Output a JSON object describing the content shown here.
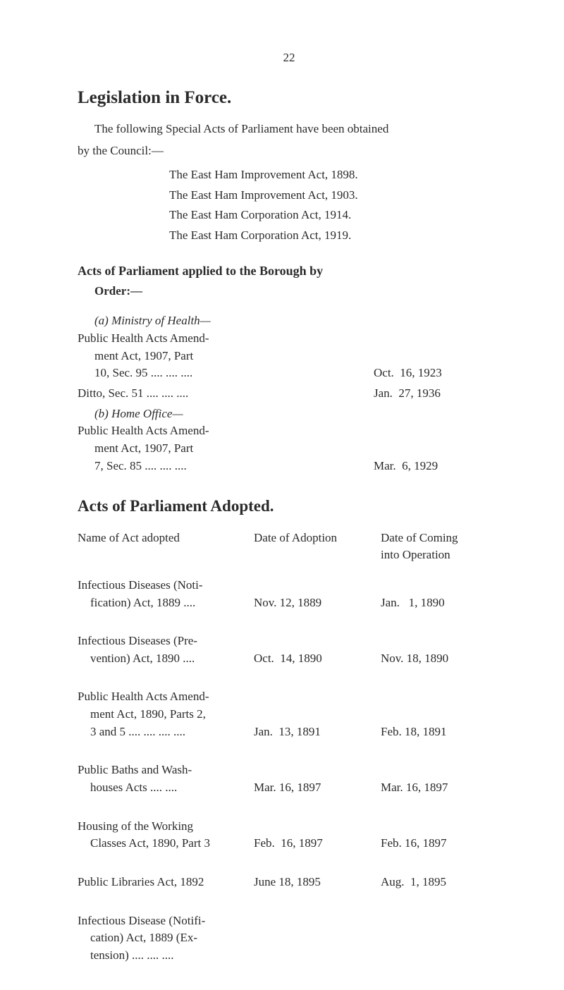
{
  "page_number": "22",
  "title": "Legislation in Force.",
  "intro_line1": "The following Special Acts of Parliament have been obtained",
  "intro_line2": "by the Council:—",
  "east_ham_acts": [
    "The East Ham Improvement Act, 1898.",
    "The East Ham Improvement Act, 1903.",
    "The East Ham Corporation Act, 1914.",
    "The East Ham Corporation Act, 1919."
  ],
  "applied_heading": "Acts of Parliament applied to the Borough by",
  "order_label": "Order:—",
  "applied": {
    "a_label": "(a) Ministry of Health—",
    "a1_lines": [
      "Public Health Acts Amend-",
      "ment Act, 1907, Part",
      "10, Sec. 95  ....  ....  ...."
    ],
    "a1_date": "Oct.  16, 1923",
    "a2_line": "Ditto, Sec. 51 ....  ....  ....",
    "a2_date": "Jan.  27, 1936",
    "b_label": "(b) Home Office—",
    "b1_lines": [
      "Public Health Acts Amend-",
      "ment Act, 1907, Part",
      "7, Sec. 85  ....  ....  ...."
    ],
    "b1_date": "Mar.  6, 1929"
  },
  "adopted_title": "Acts of Parliament Adopted.",
  "adopted_headers": {
    "name": "Name of Act adopted",
    "date1": "Date of Adoption",
    "date2_l1": "Date of Coming",
    "date2_l2": "into Operation"
  },
  "adopted_rows": [
    {
      "name_lines": [
        "Infectious Diseases  (Noti-",
        "fication) Act, 1889    ...."
      ],
      "date1": "Nov. 12, 1889",
      "date2": "Jan.   1, 1890"
    },
    {
      "name_lines": [
        "Infectious Diseases  (Pre-",
        "vention) Act, 1890    ...."
      ],
      "date1": "Oct.  14, 1890",
      "date2": "Nov. 18, 1890"
    },
    {
      "name_lines": [
        "Public Health Acts Amend-",
        "ment Act, 1890, Parts 2,",
        "3 and 5  ....  ....  ....  ...."
      ],
      "date1": "Jan.  13, 1891",
      "date2": "Feb. 18, 1891"
    },
    {
      "name_lines": [
        "Public  Baths  and  Wash-",
        "houses Acts        ....  ...."
      ],
      "date1": "Mar. 16, 1897",
      "date2": "Mar. 16, 1897"
    },
    {
      "name_lines": [
        "Housing  of  the  Working",
        "Classes Act, 1890, Part 3"
      ],
      "date1": "Feb.  16, 1897",
      "date2": "Feb. 16, 1897"
    },
    {
      "name_lines": [
        "Public Libraries Act, 1892"
      ],
      "date1": "June 18, 1895",
      "date2": "Aug.  1, 1895"
    },
    {
      "name_lines": [
        "Infectious Disease (Notifi-",
        "cation) Act, 1889 (Ex-",
        "tension)        ....  ....  ...."
      ],
      "date1": "",
      "date2": ""
    }
  ]
}
